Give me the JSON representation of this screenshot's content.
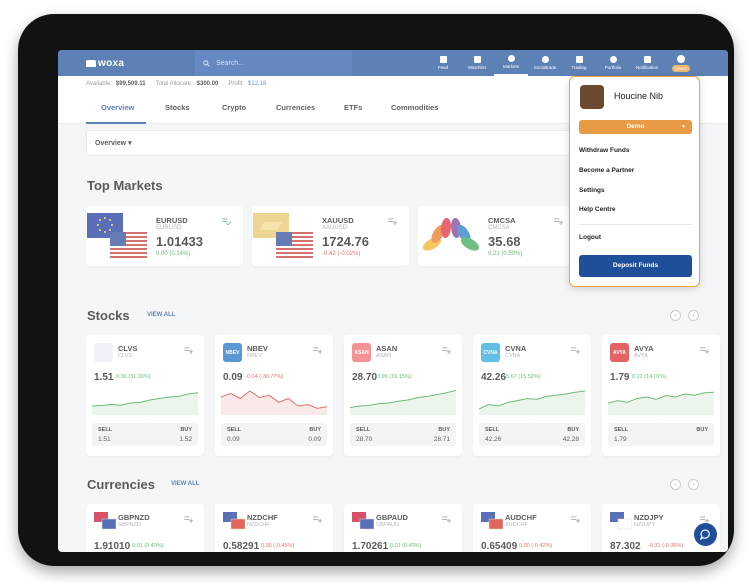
{
  "brand": {
    "name": "woxa"
  },
  "search": {
    "placeholder": "Search..."
  },
  "nav": [
    {
      "label": "Feed"
    },
    {
      "label": "Watchlist"
    },
    {
      "label": "Markets"
    },
    {
      "label": "Socialtrade"
    },
    {
      "label": "Trading"
    },
    {
      "label": "Portfolio"
    },
    {
      "label": "Notification"
    }
  ],
  "user_chip": {
    "tag": "DEMO"
  },
  "balance": {
    "available_label": "Available:",
    "available": "$99,509.11",
    "allocate_label": "Total Allocate:",
    "allocate": "$300.00",
    "profit_label": "Profit:",
    "profit": "$12.18"
  },
  "tabs": [
    "Overview",
    "Stocks",
    "Crypto",
    "Currencies",
    "ETFs",
    "Commodities"
  ],
  "overview_select": "Overview",
  "top_markets": {
    "title": "Top Markets",
    "items": [
      {
        "symbol": "EURUSD",
        "sub": "EURUSD",
        "price": "1.01433",
        "change": "0.00 (0.14%)",
        "dir": "up"
      },
      {
        "symbol": "XAUUSD",
        "sub": "XAUUSD",
        "price": "1724.76",
        "change": "-0.42 (-0.02%)",
        "dir": "down"
      },
      {
        "symbol": "CMCSA",
        "sub": "CMCSA",
        "price": "35.68",
        "change": "0.21 (0.59%)",
        "dir": "up"
      }
    ]
  },
  "stocks": {
    "title": "Stocks",
    "view_all": "VIEW ALL",
    "items": [
      {
        "logo": "",
        "symbol": "CLVS",
        "sub": "CLVS",
        "price": "1.51",
        "change": "0.36 (31.30%)",
        "dir": "up",
        "sell": "1.51",
        "buy": "1.52",
        "color": "#e9eef5"
      },
      {
        "logo": "NBEV",
        "symbol": "NBEV",
        "sub": "NBEV",
        "price": "0.09",
        "change": "-0.04 (-30.77%)",
        "dir": "down",
        "sell": "0.09",
        "buy": "0.09",
        "color": "#1c6fc0"
      },
      {
        "logo": "ASAN",
        "symbol": "ASAN",
        "sub": "ASAN",
        "price": "28.70",
        "change": "3.99 (16.15%)",
        "dir": "up",
        "sell": "28.70",
        "buy": "28.71",
        "color": "#f06a6a"
      },
      {
        "logo": "CVNA",
        "symbol": "CVNA",
        "sub": "CVNA",
        "price": "42.26",
        "change": "5.67 (15.50%)",
        "dir": "up",
        "sell": "42.26",
        "buy": "42.28",
        "color": "#26a6d8"
      },
      {
        "logo": "AVYA",
        "symbol": "AVYA",
        "sub": "AVYA",
        "price": "1.79",
        "change": "0.22 (14.01%)",
        "dir": "up",
        "sell": "1.79",
        "buy": "",
        "color": "#d9262c"
      }
    ]
  },
  "currencies": {
    "title": "Currencies",
    "view_all": "VIEW ALL",
    "items": [
      {
        "symbol": "GBPNZD",
        "sub": "GBPNZD",
        "price": "1.91010",
        "change": "0.01 (0.49%)",
        "dir": "up"
      },
      {
        "symbol": "NZDCHF",
        "sub": "NZDCHF",
        "price": "0.58291",
        "change": "0.00 (-0.45%)",
        "dir": "down"
      },
      {
        "symbol": "GBPAUD",
        "sub": "GBPAUD",
        "price": "1.70261",
        "change": "0.01 (0.43%)",
        "dir": "up"
      },
      {
        "symbol": "AUDCHF",
        "sub": "AUDCHF",
        "price": "0.65409",
        "change": "0.00 (-0.42%)",
        "dir": "down"
      },
      {
        "symbol": "NZDJPY",
        "sub": "NZDJPY",
        "price": "87.302",
        "change": "-0.31 (-0.36%)",
        "dir": "down"
      }
    ]
  },
  "labels": {
    "sell": "SELL",
    "buy": "BUY"
  },
  "dropdown": {
    "name": "Houcine Nib",
    "account": "Demo",
    "items": [
      "Withdraw Funds",
      "Become a Partner",
      "Settings",
      "Help Centre"
    ],
    "logout": "Logout",
    "deposit": "Deposit Funds"
  },
  "colors": {
    "primary": "#1f4f99",
    "accent": "#e89a45",
    "up": "#3aa14a",
    "down": "#d83a3a"
  }
}
